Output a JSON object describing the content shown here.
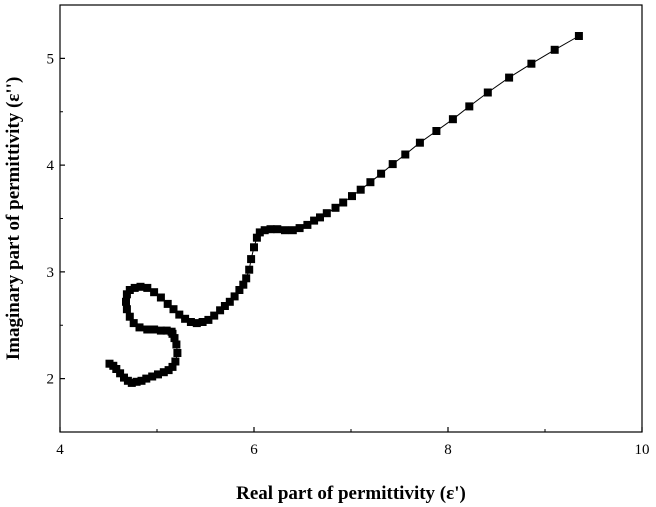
{
  "chart_data": {
    "type": "scatter",
    "title": "",
    "xlabel": "Real part of permittivity (ε')",
    "ylabel": "Imaginary part of permittivity (ε'')",
    "xlim": [
      4,
      10
    ],
    "ylim": [
      1.5,
      5.5
    ],
    "x_ticks": [
      "4",
      "6",
      "8",
      "10"
    ],
    "y_ticks": [
      "2",
      "3",
      "4",
      "5"
    ],
    "grid": false,
    "legend": "none",
    "marker": "square",
    "line": true,
    "color": "#000000",
    "series": [
      {
        "x": [
          4.51,
          4.55,
          4.58,
          4.62,
          4.66,
          4.7,
          4.74,
          4.79,
          4.84,
          4.89,
          4.95,
          5.01,
          5.07,
          5.12,
          5.16,
          5.19,
          5.21,
          5.2,
          5.18,
          5.16,
          5.15,
          5.1,
          5.04,
          4.97,
          4.9,
          4.82,
          4.76,
          4.72,
          4.69,
          4.68,
          4.69,
          4.72,
          4.77,
          4.83,
          4.9,
          4.97,
          5.04,
          5.11,
          5.17,
          5.23,
          5.29,
          5.35,
          5.41,
          5.47,
          5.53,
          5.59,
          5.65,
          5.7,
          5.75,
          5.8,
          5.85,
          5.89,
          5.92,
          5.95,
          5.97,
          6.0,
          6.03,
          6.06,
          6.11,
          6.17,
          6.24,
          6.32,
          6.4,
          6.47,
          6.55,
          6.62,
          6.68,
          6.75,
          6.84,
          6.92,
          7.01,
          7.1,
          7.2,
          7.31,
          7.43,
          7.56,
          7.71,
          7.88,
          8.05,
          8.22,
          8.41,
          8.63,
          8.86,
          9.1,
          9.35
        ],
        "y": [
          2.14,
          2.12,
          2.09,
          2.05,
          2.01,
          1.98,
          1.96,
          1.97,
          1.98,
          2.0,
          2.02,
          2.04,
          2.06,
          2.08,
          2.11,
          2.16,
          2.24,
          2.32,
          2.38,
          2.42,
          2.44,
          2.45,
          2.45,
          2.46,
          2.46,
          2.48,
          2.52,
          2.58,
          2.65,
          2.72,
          2.79,
          2.83,
          2.85,
          2.86,
          2.85,
          2.81,
          2.76,
          2.7,
          2.65,
          2.6,
          2.56,
          2.53,
          2.52,
          2.53,
          2.55,
          2.59,
          2.64,
          2.68,
          2.72,
          2.77,
          2.83,
          2.88,
          2.94,
          3.02,
          3.12,
          3.23,
          3.32,
          3.37,
          3.39,
          3.4,
          3.4,
          3.39,
          3.39,
          3.41,
          3.44,
          3.48,
          3.51,
          3.55,
          3.6,
          3.65,
          3.71,
          3.77,
          3.84,
          3.92,
          4.01,
          4.1,
          4.21,
          4.32,
          4.43,
          4.55,
          4.68,
          4.82,
          4.95,
          5.08,
          5.21
        ]
      }
    ]
  }
}
